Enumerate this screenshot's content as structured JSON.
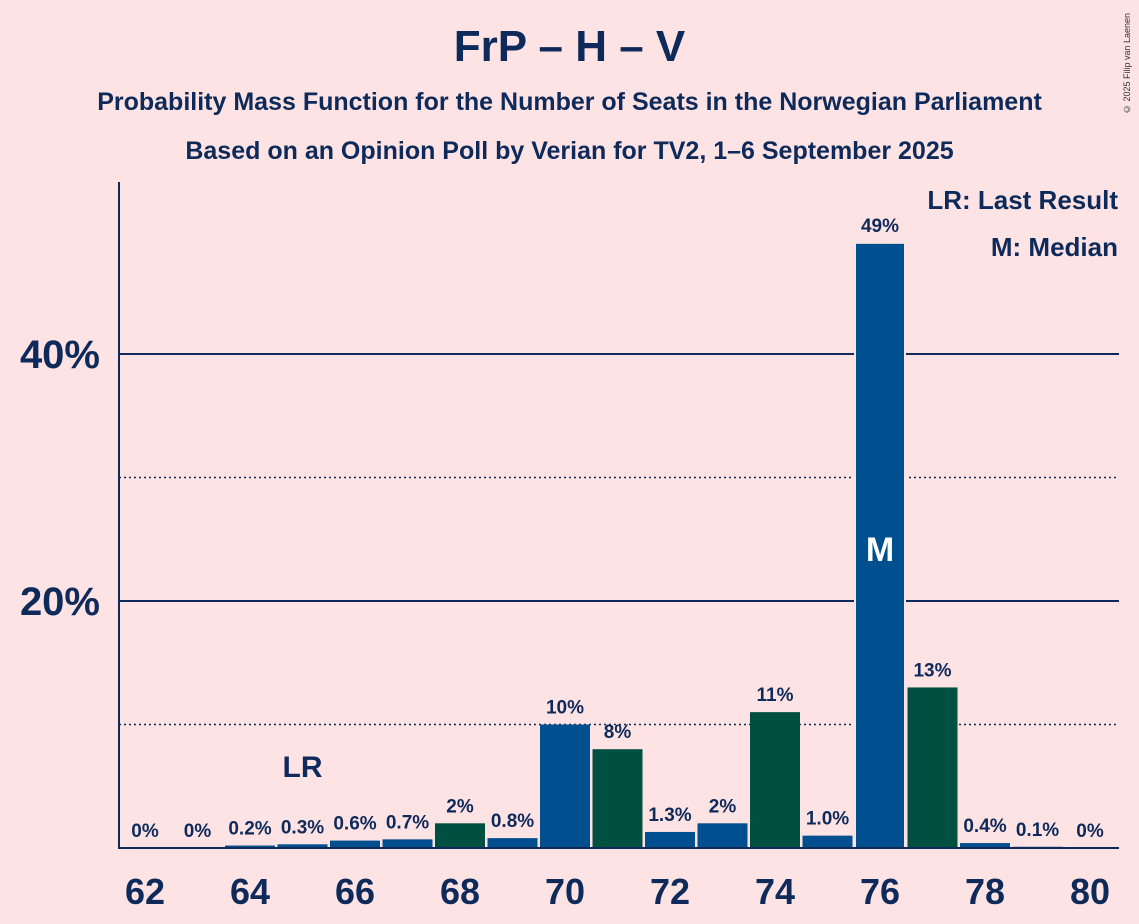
{
  "chart_data": {
    "type": "bar",
    "title": "FrP – H – V",
    "subtitle": "Probability Mass Function for the Number of Seats in the Norwegian Parliament",
    "subtitle2": "Based on an Opinion Poll by Verian for TV2, 1–6 September 2025",
    "copyright": "© 2025 Filip van Laenen",
    "legend": [
      "LR: Last Result",
      "M: Median"
    ],
    "legend_placement": "top-right",
    "x": [
      62,
      63,
      64,
      65,
      66,
      67,
      68,
      69,
      70,
      71,
      72,
      73,
      74,
      75,
      76,
      77,
      78,
      79,
      80
    ],
    "values": [
      0,
      0,
      0.2,
      0.3,
      0.6,
      0.7,
      2,
      0.8,
      10,
      8,
      1.3,
      2,
      11,
      1.0,
      49,
      13,
      0.4,
      0.1,
      0
    ],
    "value_labels": [
      "0%",
      "0%",
      "0.2%",
      "0.3%",
      "0.6%",
      "0.7%",
      "2%",
      "0.8%",
      "10%",
      "8%",
      "1.3%",
      "2%",
      "11%",
      "1.0%",
      "49%",
      "13%",
      "0.4%",
      "0.1%",
      "0%"
    ],
    "bar_colors": [
      "#00508f",
      "#00508f",
      "#00508f",
      "#00508f",
      "#00508f",
      "#00508f",
      "#005042",
      "#00508f",
      "#00508f",
      "#005042",
      "#00508f",
      "#00508f",
      "#005042",
      "#00508f",
      "#00508f",
      "#005042",
      "#00508f",
      "#00508f",
      "#00508f"
    ],
    "x_tick_labels": [
      "62",
      "64",
      "66",
      "68",
      "70",
      "72",
      "74",
      "76",
      "78",
      "80"
    ],
    "y_tick_labels": [
      {
        "value": 20,
        "label": "20%"
      },
      {
        "value": 40,
        "label": "40%"
      }
    ],
    "y_gridlines_solid": [
      20,
      40
    ],
    "y_gridlines_dotted": [
      10,
      30
    ],
    "ylim": [
      0,
      54
    ],
    "last_result": {
      "x": 65,
      "label": "LR"
    },
    "median": {
      "x": 76,
      "label": "M"
    },
    "colors": {
      "background": "#fde3e3",
      "text": "#0e2a5a",
      "blue": "#00508f",
      "green": "#005042"
    }
  }
}
